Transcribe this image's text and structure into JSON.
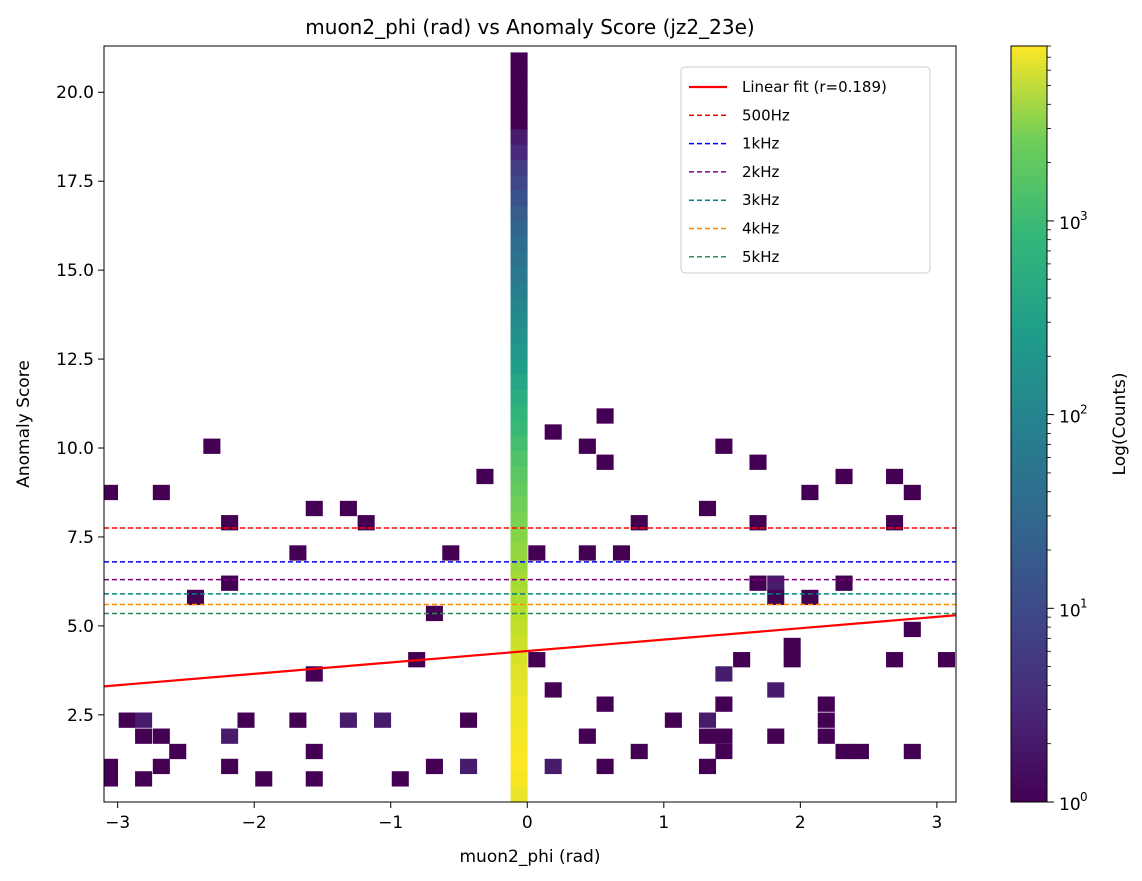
{
  "chart_data": {
    "type": "heatmap",
    "title": "muon2_phi (rad) vs Anomaly Score (jz2_23e)",
    "xlabel": "muon2_phi (rad)",
    "ylabel": "Anomaly Score",
    "xlim": [
      -3.1,
      3.14
    ],
    "ylim": [
      0.05,
      21.3
    ],
    "xticks": [
      -3,
      -2,
      -1,
      0,
      1,
      2,
      3
    ],
    "xtick_labels": [
      "−3",
      "−2",
      "−1",
      "0",
      "1",
      "2",
      "3"
    ],
    "yticks": [
      2.5,
      5.0,
      7.5,
      10.0,
      12.5,
      15.0,
      17.5,
      20.0
    ],
    "ytick_labels": [
      "2.5",
      "5.0",
      "7.5",
      "10.0",
      "12.5",
      "15.0",
      "17.5",
      "20.0"
    ],
    "bin_width_x": 0.125,
    "bin_height_y": 0.43,
    "colorbar": {
      "label": "Log(Counts)",
      "scale": "log",
      "min": 1,
      "max": 8000,
      "ticks": [
        1,
        10,
        100,
        1000
      ],
      "tick_labels": [
        "10",
        "10",
        "10",
        "10"
      ],
      "tick_exponents": [
        "0",
        "1",
        "2",
        "3"
      ],
      "colormap": "viridis"
    },
    "fit_line": {
      "label": "Linear fit (r=0.189)",
      "color": "#ff0000",
      "x": [
        -3.1,
        3.14
      ],
      "y": [
        3.3,
        5.3
      ]
    },
    "thresholds": [
      {
        "label": "500Hz",
        "y": 7.75,
        "color": "#ff0000"
      },
      {
        "label": "1kHz",
        "y": 6.8,
        "color": "#0000ff"
      },
      {
        "label": "2kHz",
        "y": 6.3,
        "color": "#800080"
      },
      {
        "label": "3kHz",
        "y": 5.9,
        "color": "#008080"
      },
      {
        "label": "4kHz",
        "y": 5.6,
        "color": "#ff8c00"
      },
      {
        "label": "5kHz",
        "y": 5.35,
        "color": "#2e8b57"
      }
    ],
    "legend_position": "upper-right",
    "central_column": {
      "x": -0.06,
      "counts": [
        6000,
        7500,
        7800,
        7600,
        7000,
        6800,
        6500,
        5800,
        5200,
        4600,
        4000,
        3400,
        3000,
        2600,
        2400,
        2000,
        1800,
        1500,
        1300,
        1100,
        900,
        760,
        640,
        520,
        420,
        340,
        260,
        200,
        150,
        120,
        95,
        75,
        60,
        48,
        38,
        30,
        24,
        18,
        14,
        10,
        7,
        5,
        3,
        2,
        1,
        1,
        1,
        1,
        1
      ]
    },
    "cells": [
      {
        "x": -3.06,
        "y": 0.7,
        "c": 1
      },
      {
        "x": -3.06,
        "y": 1.05,
        "c": 1
      },
      {
        "x": -3.06,
        "y": 8.75,
        "c": 1
      },
      {
        "x": -2.93,
        "y": 2.35,
        "c": 1
      },
      {
        "x": -2.81,
        "y": 2.35,
        "c": 2
      },
      {
        "x": -2.81,
        "y": 1.9,
        "c": 1
      },
      {
        "x": -2.81,
        "y": 0.7,
        "c": 1
      },
      {
        "x": -2.68,
        "y": 1.9,
        "c": 1
      },
      {
        "x": -2.68,
        "y": 1.05,
        "c": 1
      },
      {
        "x": -2.68,
        "y": 8.75,
        "c": 1
      },
      {
        "x": -2.56,
        "y": 1.47,
        "c": 1
      },
      {
        "x": -2.43,
        "y": 5.8,
        "c": 1
      },
      {
        "x": -2.31,
        "y": 10.05,
        "c": 1
      },
      {
        "x": -2.18,
        "y": 7.9,
        "c": 1
      },
      {
        "x": -2.18,
        "y": 6.2,
        "c": 1
      },
      {
        "x": -2.18,
        "y": 1.9,
        "c": 2
      },
      {
        "x": -2.18,
        "y": 1.05,
        "c": 1
      },
      {
        "x": -2.06,
        "y": 2.35,
        "c": 1
      },
      {
        "x": -1.93,
        "y": 0.7,
        "c": 1
      },
      {
        "x": -1.68,
        "y": 7.05,
        "c": 1
      },
      {
        "x": -1.68,
        "y": 2.35,
        "c": 1
      },
      {
        "x": -1.56,
        "y": 8.3,
        "c": 1
      },
      {
        "x": -1.56,
        "y": 3.65,
        "c": 1
      },
      {
        "x": -1.56,
        "y": 1.47,
        "c": 1
      },
      {
        "x": -1.56,
        "y": 0.7,
        "c": 1
      },
      {
        "x": -1.31,
        "y": 8.3,
        "c": 1
      },
      {
        "x": -1.31,
        "y": 2.35,
        "c": 2
      },
      {
        "x": -1.18,
        "y": 7.9,
        "c": 1
      },
      {
        "x": -1.06,
        "y": 2.35,
        "c": 2
      },
      {
        "x": -0.93,
        "y": 0.7,
        "c": 1
      },
      {
        "x": -0.81,
        "y": 4.05,
        "c": 1
      },
      {
        "x": -0.68,
        "y": 5.35,
        "c": 1
      },
      {
        "x": -0.68,
        "y": 1.05,
        "c": 1
      },
      {
        "x": -0.56,
        "y": 7.05,
        "c": 1
      },
      {
        "x": -0.43,
        "y": 2.35,
        "c": 1
      },
      {
        "x": -0.43,
        "y": 1.05,
        "c": 2
      },
      {
        "x": -0.31,
        "y": 9.2,
        "c": 1
      },
      {
        "x": 0.07,
        "y": 7.05,
        "c": 1
      },
      {
        "x": 0.07,
        "y": 4.05,
        "c": 1
      },
      {
        "x": 0.19,
        "y": 10.45,
        "c": 1
      },
      {
        "x": 0.19,
        "y": 3.2,
        "c": 1
      },
      {
        "x": 0.19,
        "y": 1.05,
        "c": 2
      },
      {
        "x": 0.44,
        "y": 10.05,
        "c": 1
      },
      {
        "x": 0.44,
        "y": 7.05,
        "c": 1
      },
      {
        "x": 0.44,
        "y": 1.9,
        "c": 1
      },
      {
        "x": 0.57,
        "y": 10.9,
        "c": 1
      },
      {
        "x": 0.57,
        "y": 9.6,
        "c": 1
      },
      {
        "x": 0.57,
        "y": 2.8,
        "c": 1
      },
      {
        "x": 0.57,
        "y": 1.05,
        "c": 1
      },
      {
        "x": 0.69,
        "y": 7.05,
        "c": 1
      },
      {
        "x": 0.82,
        "y": 7.9,
        "c": 1
      },
      {
        "x": 0.82,
        "y": 1.47,
        "c": 1
      },
      {
        "x": 1.07,
        "y": 2.35,
        "c": 1
      },
      {
        "x": 1.32,
        "y": 8.3,
        "c": 1
      },
      {
        "x": 1.32,
        "y": 2.35,
        "c": 2
      },
      {
        "x": 1.32,
        "y": 1.9,
        "c": 1
      },
      {
        "x": 1.32,
        "y": 1.05,
        "c": 1
      },
      {
        "x": 1.44,
        "y": 10.05,
        "c": 1
      },
      {
        "x": 1.44,
        "y": 3.65,
        "c": 2
      },
      {
        "x": 1.44,
        "y": 2.8,
        "c": 1
      },
      {
        "x": 1.44,
        "y": 1.9,
        "c": 1
      },
      {
        "x": 1.44,
        "y": 1.47,
        "c": 1
      },
      {
        "x": 1.57,
        "y": 4.05,
        "c": 1
      },
      {
        "x": 1.69,
        "y": 9.6,
        "c": 1
      },
      {
        "x": 1.69,
        "y": 7.9,
        "c": 1
      },
      {
        "x": 1.69,
        "y": 6.2,
        "c": 1
      },
      {
        "x": 1.82,
        "y": 6.2,
        "c": 2
      },
      {
        "x": 1.82,
        "y": 5.8,
        "c": 1
      },
      {
        "x": 1.82,
        "y": 3.2,
        "c": 2
      },
      {
        "x": 1.82,
        "y": 1.9,
        "c": 1
      },
      {
        "x": 1.94,
        "y": 4.45,
        "c": 1
      },
      {
        "x": 1.94,
        "y": 4.05,
        "c": 1
      },
      {
        "x": 2.07,
        "y": 8.75,
        "c": 1
      },
      {
        "x": 2.07,
        "y": 5.8,
        "c": 1
      },
      {
        "x": 2.19,
        "y": 2.8,
        "c": 1
      },
      {
        "x": 2.19,
        "y": 2.35,
        "c": 1
      },
      {
        "x": 2.19,
        "y": 1.9,
        "c": 1
      },
      {
        "x": 2.32,
        "y": 9.2,
        "c": 1
      },
      {
        "x": 2.32,
        "y": 6.2,
        "c": 1
      },
      {
        "x": 2.32,
        "y": 1.47,
        "c": 1
      },
      {
        "x": 2.44,
        "y": 1.47,
        "c": 1
      },
      {
        "x": 2.69,
        "y": 9.2,
        "c": 1
      },
      {
        "x": 2.69,
        "y": 7.9,
        "c": 1
      },
      {
        "x": 2.69,
        "y": 4.05,
        "c": 1
      },
      {
        "x": 2.82,
        "y": 8.75,
        "c": 1
      },
      {
        "x": 2.82,
        "y": 4.9,
        "c": 1
      },
      {
        "x": 2.82,
        "y": 1.47,
        "c": 1
      },
      {
        "x": 3.07,
        "y": 4.05,
        "c": 1
      }
    ]
  }
}
